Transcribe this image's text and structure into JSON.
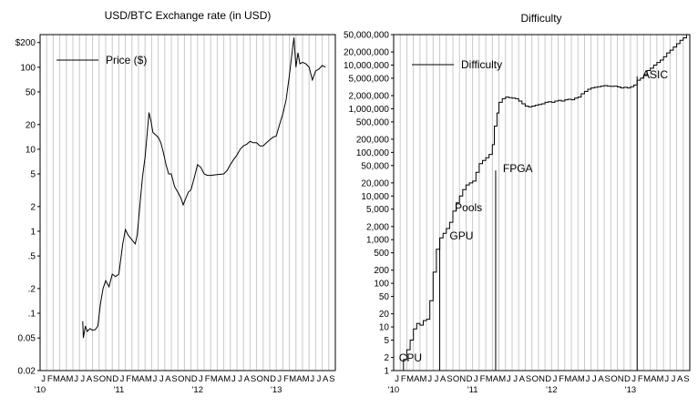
{
  "chart_data": [
    {
      "type": "line",
      "title": "USD/BTC Exchange rate (in USD)",
      "legend": "Price ($)",
      "legend_position": "top-left",
      "yscale": "log",
      "ylim": [
        0.02,
        250
      ],
      "grid": "vertical monthly",
      "xlim_months": [
        0,
        45
      ],
      "yticks": [
        {
          "v": 200,
          "label": "$200"
        },
        {
          "v": 100,
          "label": "100"
        },
        {
          "v": 50,
          "label": "50"
        },
        {
          "v": 20,
          "label": "20"
        },
        {
          "v": 10,
          "label": "10"
        },
        {
          "v": 5,
          "label": "5"
        },
        {
          "v": 2,
          "label": "2"
        },
        {
          "v": 1,
          "label": "1"
        },
        {
          "v": 0.5,
          "label": ".5"
        },
        {
          "v": 0.2,
          "label": ".2"
        },
        {
          "v": 0.1,
          "label": ".1"
        },
        {
          "v": 0.05,
          "label": "0.05"
        },
        {
          "v": 0.02,
          "label": "0.02"
        }
      ],
      "month_labels": [
        "J",
        "F",
        "M",
        "A",
        "M",
        "J",
        "J",
        "A",
        "S",
        "O",
        "N",
        "D",
        "J",
        "F",
        "M",
        "A",
        "M",
        "J",
        "J",
        "A",
        "S",
        "O",
        "N",
        "D",
        "J",
        "F",
        "M",
        "A",
        "M",
        "J",
        "J",
        "A",
        "S",
        "O",
        "N",
        "D",
        "J",
        "F",
        "M",
        "A",
        "M",
        "J",
        "J",
        "A",
        "S"
      ],
      "year_labels": [
        {
          "m": 0,
          "label": "'10"
        },
        {
          "m": 12,
          "label": "'11"
        },
        {
          "m": 24,
          "label": "'12"
        },
        {
          "m": 36,
          "label": "'13"
        }
      ],
      "series": [
        {
          "name": "Price ($)",
          "points": [
            [
              6.5,
              0.08
            ],
            [
              6.6,
              0.05
            ],
            [
              6.9,
              0.07
            ],
            [
              7.2,
              0.06
            ],
            [
              7.6,
              0.065
            ],
            [
              8.0,
              0.062
            ],
            [
              8.4,
              0.063
            ],
            [
              8.8,
              0.07
            ],
            [
              9.2,
              0.13
            ],
            [
              9.6,
              0.2
            ],
            [
              10.0,
              0.25
            ],
            [
              10.5,
              0.21
            ],
            [
              11.0,
              0.3
            ],
            [
              11.5,
              0.28
            ],
            [
              12.0,
              0.3
            ],
            [
              12.6,
              0.7
            ],
            [
              13.0,
              1.05
            ],
            [
              13.4,
              0.9
            ],
            [
              13.8,
              0.82
            ],
            [
              14.2,
              0.75
            ],
            [
              14.5,
              0.7
            ],
            [
              14.8,
              0.9
            ],
            [
              15.2,
              2.0
            ],
            [
              15.6,
              4.5
            ],
            [
              16.0,
              8.0
            ],
            [
              16.3,
              15.0
            ],
            [
              16.6,
              28.0
            ],
            [
              16.9,
              22.0
            ],
            [
              17.2,
              16.0
            ],
            [
              17.6,
              15.0
            ],
            [
              18.0,
              14.0
            ],
            [
              18.4,
              12.0
            ],
            [
              18.8,
              9.0
            ],
            [
              19.2,
              6.5
            ],
            [
              19.6,
              5.0
            ],
            [
              20.0,
              5.0
            ],
            [
              20.5,
              3.5
            ],
            [
              21.0,
              3.0
            ],
            [
              21.5,
              2.5
            ],
            [
              21.8,
              2.1
            ],
            [
              22.2,
              2.5
            ],
            [
              22.6,
              3.0
            ],
            [
              23.0,
              3.2
            ],
            [
              23.5,
              4.5
            ],
            [
              24.0,
              6.5
            ],
            [
              24.5,
              6.0
            ],
            [
              25.0,
              5.0
            ],
            [
              25.5,
              4.8
            ],
            [
              26.0,
              4.8
            ],
            [
              27.0,
              4.9
            ],
            [
              28.0,
              5.0
            ],
            [
              28.5,
              5.5
            ],
            [
              29.0,
              6.5
            ],
            [
              29.5,
              7.5
            ],
            [
              30.0,
              8.5
            ],
            [
              30.5,
              10.0
            ],
            [
              31.0,
              11.0
            ],
            [
              31.5,
              11.5
            ],
            [
              32.0,
              12.5
            ],
            [
              32.5,
              12.0
            ],
            [
              33.0,
              12.0
            ],
            [
              33.5,
              11.0
            ],
            [
              34.0,
              11.0
            ],
            [
              34.5,
              12.0
            ],
            [
              35.0,
              13.0
            ],
            [
              35.5,
              14.0
            ],
            [
              36.0,
              14.5
            ],
            [
              36.5,
              20.0
            ],
            [
              37.0,
              27.0
            ],
            [
              37.5,
              40.0
            ],
            [
              38.0,
              80.0
            ],
            [
              38.4,
              150.0
            ],
            [
              38.7,
              230.0
            ],
            [
              39.0,
              100.0
            ],
            [
              39.3,
              150.0
            ],
            [
              39.6,
              110.0
            ],
            [
              40.0,
              115.0
            ],
            [
              40.5,
              110.0
            ],
            [
              41.0,
              100.0
            ],
            [
              41.5,
              70.0
            ],
            [
              42.0,
              90.0
            ],
            [
              42.5,
              95.0
            ],
            [
              43.0,
              105.0
            ],
            [
              43.5,
              100.0
            ]
          ]
        }
      ]
    },
    {
      "type": "line",
      "title": "Difficulty",
      "legend": "Difficulty",
      "legend_position": "top-left",
      "yscale": "log",
      "ylim": [
        1,
        50000000
      ],
      "grid": "vertical monthly",
      "xlim_months": [
        0,
        45
      ],
      "yticks": [
        {
          "v": 50000000,
          "label": "50,000,000"
        },
        {
          "v": 20000000,
          "label": "20,000,000"
        },
        {
          "v": 10000000,
          "label": "10,000,000"
        },
        {
          "v": 5000000,
          "label": "5,000,000"
        },
        {
          "v": 2000000,
          "label": "2,000,000"
        },
        {
          "v": 1000000,
          "label": "1,000,000"
        },
        {
          "v": 500000,
          "label": "500,000"
        },
        {
          "v": 200000,
          "label": "200,000"
        },
        {
          "v": 100000,
          "label": "100,000"
        },
        {
          "v": 50000,
          "label": "50,000"
        },
        {
          "v": 20000,
          "label": "20,000"
        },
        {
          "v": 10000,
          "label": "10,000"
        },
        {
          "v": 5000,
          "label": "5,000"
        },
        {
          "v": 2000,
          "label": "2,000"
        },
        {
          "v": 1000,
          "label": "1,000"
        },
        {
          "v": 500,
          "label": "500"
        },
        {
          "v": 200,
          "label": "200"
        },
        {
          "v": 100,
          "label": "100"
        },
        {
          "v": 50,
          "label": "50"
        },
        {
          "v": 20,
          "label": "20"
        },
        {
          "v": 10,
          "label": "10"
        },
        {
          "v": 5,
          "label": "5"
        },
        {
          "v": 2,
          "label": "2"
        },
        {
          "v": 1,
          "label": "1"
        }
      ],
      "month_labels": [
        "J",
        "F",
        "M",
        "A",
        "M",
        "J",
        "J",
        "A",
        "S",
        "O",
        "N",
        "D",
        "J",
        "F",
        "M",
        "A",
        "M",
        "J",
        "J",
        "A",
        "S",
        "O",
        "N",
        "D",
        "J",
        "F",
        "M",
        "A",
        "M",
        "J",
        "J",
        "A",
        "S",
        "O",
        "N",
        "D",
        "J",
        "F",
        "M",
        "A",
        "M",
        "J",
        "J",
        "A",
        "S"
      ],
      "year_labels": [
        {
          "m": 0,
          "label": "'10"
        },
        {
          "m": 12,
          "label": "'11"
        },
        {
          "m": 24,
          "label": "'12"
        },
        {
          "m": 36,
          "label": "'13"
        }
      ],
      "annotations": [
        {
          "label": "CPU",
          "m": 0.8,
          "v": 1.6,
          "line_from": null
        },
        {
          "label": "GPU",
          "m": 8.5,
          "v": 1000,
          "line_from": 7.0
        },
        {
          "label": "Pools",
          "m": 9.3,
          "v": 4500,
          "line_from": null
        },
        {
          "label": "FPGA",
          "m": 16.6,
          "v": 35000,
          "line_from": 15.5
        },
        {
          "label": "ASIC",
          "m": 37.8,
          "v": 5000000,
          "line_from": 37.0
        }
      ],
      "series": [
        {
          "name": "Difficulty",
          "points": [
            [
              1.0,
              1
            ],
            [
              1.5,
              1.8
            ],
            [
              2.0,
              3
            ],
            [
              2.5,
              5
            ],
            [
              3.0,
              9
            ],
            [
              3.5,
              12
            ],
            [
              4.0,
              11
            ],
            [
              4.5,
              14
            ],
            [
              5.0,
              15
            ],
            [
              5.5,
              40
            ],
            [
              6.0,
              180
            ],
            [
              6.5,
              600
            ],
            [
              7.0,
              1100
            ],
            [
              7.5,
              1400
            ],
            [
              8.0,
              1800
            ],
            [
              8.5,
              2500
            ],
            [
              9.0,
              4500
            ],
            [
              9.5,
              7000
            ],
            [
              10.0,
              10000
            ],
            [
              10.5,
              14000
            ],
            [
              11.0,
              18000
            ],
            [
              11.5,
              20000
            ],
            [
              12.0,
              22000
            ],
            [
              12.5,
              35000
            ],
            [
              13.0,
              55000
            ],
            [
              13.5,
              65000
            ],
            [
              14.0,
              75000
            ],
            [
              14.5,
              90000
            ],
            [
              15.0,
              150000
            ],
            [
              15.3,
              400000
            ],
            [
              15.7,
              800000
            ],
            [
              16.0,
              1400000
            ],
            [
              16.5,
              1700000
            ],
            [
              17.0,
              1850000
            ],
            [
              17.5,
              1800000
            ],
            [
              18.0,
              1750000
            ],
            [
              18.5,
              1700000
            ],
            [
              19.0,
              1500000
            ],
            [
              19.5,
              1300000
            ],
            [
              20.0,
              1150000
            ],
            [
              20.5,
              1100000
            ],
            [
              21.0,
              1150000
            ],
            [
              21.5,
              1200000
            ],
            [
              22.0,
              1250000
            ],
            [
              22.5,
              1300000
            ],
            [
              23.0,
              1400000
            ],
            [
              23.5,
              1450000
            ],
            [
              24.0,
              1400000
            ],
            [
              24.5,
              1500000
            ],
            [
              25.0,
              1550000
            ],
            [
              25.5,
              1500000
            ],
            [
              26.0,
              1600000
            ],
            [
              26.5,
              1650000
            ],
            [
              27.0,
              1600000
            ],
            [
              27.5,
              1750000
            ],
            [
              28.0,
              1850000
            ],
            [
              28.5,
              2200000
            ],
            [
              29.0,
              2500000
            ],
            [
              29.5,
              2800000
            ],
            [
              30.0,
              3000000
            ],
            [
              30.5,
              3100000
            ],
            [
              31.0,
              3200000
            ],
            [
              31.5,
              3300000
            ],
            [
              32.0,
              3400000
            ],
            [
              32.5,
              3300000
            ],
            [
              33.0,
              3250000
            ],
            [
              33.5,
              3300000
            ],
            [
              34.0,
              3150000
            ],
            [
              34.5,
              3000000
            ],
            [
              35.0,
              3100000
            ],
            [
              35.5,
              3000000
            ],
            [
              36.0,
              3200000
            ],
            [
              36.5,
              3500000
            ],
            [
              37.0,
              4500000
            ],
            [
              37.5,
              5000000
            ],
            [
              38.0,
              6000000
            ],
            [
              38.5,
              7500000
            ],
            [
              39.0,
              8500000
            ],
            [
              39.5,
              10000000
            ],
            [
              40.0,
              11500000
            ],
            [
              40.5,
              13000000
            ],
            [
              41.0,
              15500000
            ],
            [
              41.5,
              19000000
            ],
            [
              42.0,
              22000000
            ],
            [
              42.5,
              26000000
            ],
            [
              43.0,
              31000000
            ],
            [
              43.5,
              37000000
            ],
            [
              44.0,
              42000000
            ],
            [
              44.5,
              50000000
            ]
          ]
        }
      ]
    }
  ]
}
